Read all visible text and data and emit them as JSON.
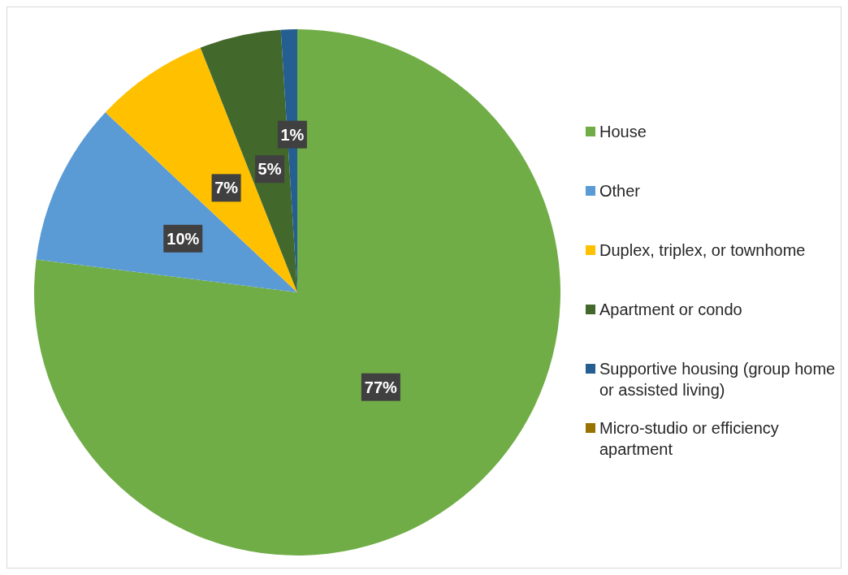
{
  "chart_data": {
    "type": "pie",
    "categories": [
      "House",
      "Other",
      "Duplex, triplex, or townhome",
      "Apartment or condo",
      "Supportive housing (group home or assisted living)",
      "Micro-studio or efficiency apartment"
    ],
    "values": [
      77,
      10,
      7,
      5,
      1,
      0
    ],
    "colors": [
      "#70ad47",
      "#5b9bd5",
      "#ffc000",
      "#43682b",
      "#255e91",
      "#997300"
    ],
    "value_labels": [
      "77%",
      "10%",
      "7%",
      "5%",
      "1%",
      null
    ],
    "legend": "right"
  }
}
